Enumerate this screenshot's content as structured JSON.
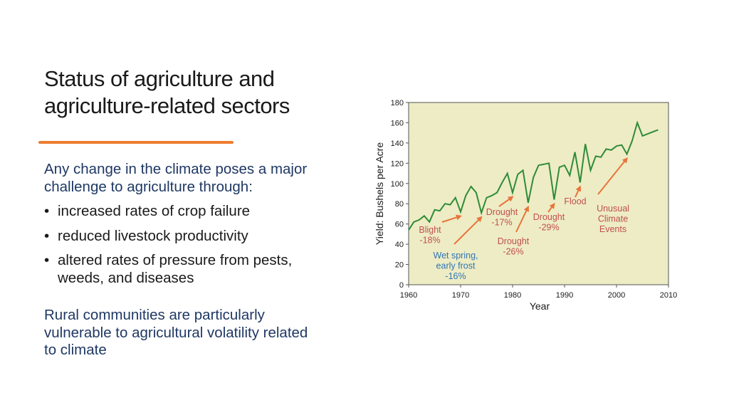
{
  "slide": {
    "title_line1": "Status of agriculture and",
    "title_line2": "agriculture-related sectors",
    "intro": "Any change in the climate poses a major challenge to agriculture through:",
    "bullets": [
      "increased rates of crop failure",
      "reduced livestock productivity",
      "altered rates of pressure from pests, weeds, and diseases"
    ],
    "closing": "Rural communities are particularly vulnerable to agricultural volatility related to climate"
  },
  "colors": {
    "accent": "#ed7d31",
    "body_text": "#1f3864",
    "plot_bg": "#eeecc4",
    "line": "#2e8b3a",
    "arrow": "#e8743b",
    "annotation_red": "#c0504d",
    "annotation_blue": "#2e75b6"
  },
  "chart_data": {
    "type": "line",
    "title": "",
    "xlabel": "Year",
    "ylabel": "Yield: Bushels per Acre",
    "xlim": [
      1960,
      2010
    ],
    "ylim": [
      0,
      180
    ],
    "xticks": [
      1960,
      1970,
      1980,
      1990,
      2000,
      2010
    ],
    "yticks": [
      0,
      20,
      40,
      60,
      80,
      100,
      120,
      140,
      160,
      180
    ],
    "grid": false,
    "x": [
      1960,
      1961,
      1962,
      1963,
      1964,
      1965,
      1966,
      1967,
      1968,
      1969,
      1970,
      1971,
      1972,
      1973,
      1974,
      1975,
      1976,
      1977,
      1978,
      1979,
      1980,
      1981,
      1982,
      1983,
      1984,
      1985,
      1986,
      1987,
      1988,
      1989,
      1990,
      1991,
      1992,
      1993,
      1994,
      1995,
      1996,
      1997,
      1998,
      1999,
      2000,
      2001,
      2002,
      2003,
      2004,
      2005,
      2006,
      2007,
      2008
    ],
    "series": [
      {
        "values": [
          54,
          62,
          64,
          68,
          62,
          74,
          73,
          80,
          79,
          86,
          72,
          88,
          97,
          91,
          71,
          86,
          88,
          91,
          101,
          110,
          91,
          109,
          113,
          81,
          106,
          118,
          119,
          120,
          84,
          116,
          118,
          108,
          131,
          101,
          139,
          113,
          127,
          126,
          134,
          133,
          137,
          138,
          129,
          142,
          160,
          147,
          149,
          151,
          153
        ]
      }
    ],
    "annotations": [
      {
        "text": [
          "Blight",
          "-18%"
        ],
        "color": "red",
        "year": 1970
      },
      {
        "text": [
          "Wet spring,",
          "early frost",
          "-16%"
        ],
        "color": "blue",
        "year": 1974
      },
      {
        "text": [
          "Drought",
          "-17%"
        ],
        "color": "red",
        "year": 1980
      },
      {
        "text": [
          "Drought",
          "-26%"
        ],
        "color": "red",
        "year": 1983
      },
      {
        "text": [
          "Drought",
          "-29%"
        ],
        "color": "red",
        "year": 1988
      },
      {
        "text": [
          "Flood"
        ],
        "color": "red",
        "year": 1993
      },
      {
        "text": [
          "Unusual",
          "Climate",
          "Events"
        ],
        "color": "red",
        "year": 2002
      }
    ]
  }
}
